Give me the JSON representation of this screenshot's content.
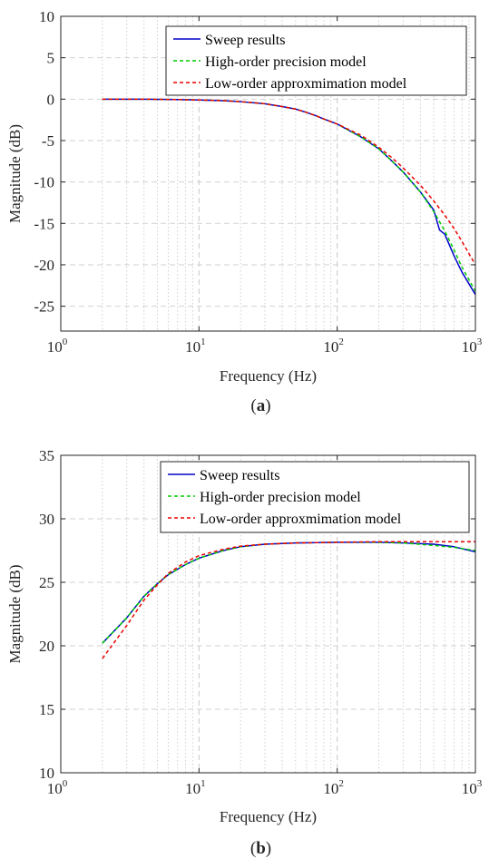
{
  "chart_data": [
    {
      "type": "line",
      "id": "a",
      "caption": "a",
      "xlabel": "Frequency (Hz)",
      "ylabel": "Magnitude (dB)",
      "xscale": "log",
      "xlim": [
        1,
        1000
      ],
      "ylim": [
        -28,
        10
      ],
      "xticks": [
        {
          "base": "10",
          "exp": "0"
        },
        {
          "base": "10",
          "exp": "1"
        },
        {
          "base": "10",
          "exp": "2"
        },
        {
          "base": "10",
          "exp": "3"
        }
      ],
      "yticks": [
        10,
        5,
        0,
        -5,
        -10,
        -15,
        -20,
        -25
      ],
      "grid": true,
      "legend_position": "top-right",
      "series": [
        {
          "name": "Sweep results",
          "color": "#0000cc",
          "style": "solid",
          "x": [
            2,
            4,
            7,
            10,
            15,
            20,
            30,
            40,
            50,
            60,
            70,
            80,
            100,
            150,
            200,
            250,
            300,
            400,
            500,
            550,
            600,
            700,
            800,
            1000
          ],
          "y": [
            0,
            0,
            -0.05,
            -0.1,
            -0.18,
            -0.3,
            -0.55,
            -0.9,
            -1.2,
            -1.6,
            -2.0,
            -2.4,
            -3.0,
            -4.6,
            -6.0,
            -7.5,
            -8.8,
            -11.2,
            -13.4,
            -15.8,
            -16.3,
            -18.9,
            -20.9,
            -23.6
          ]
        },
        {
          "name": "High-order precision model",
          "color": "#00cc00",
          "style": "dashed",
          "x": [
            2,
            4,
            7,
            10,
            15,
            20,
            30,
            40,
            50,
            60,
            70,
            80,
            100,
            150,
            200,
            250,
            300,
            400,
            500,
            600,
            700,
            800,
            1000
          ],
          "y": [
            0,
            0,
            -0.05,
            -0.1,
            -0.18,
            -0.3,
            -0.55,
            -0.9,
            -1.2,
            -1.6,
            -2.0,
            -2.4,
            -3.0,
            -4.6,
            -6.0,
            -7.5,
            -8.8,
            -11.2,
            -13.6,
            -15.9,
            -18.2,
            -20.3,
            -23.2
          ]
        },
        {
          "name": "Low-order approxmimation model",
          "color": "#ee0000",
          "style": "dashed",
          "x": [
            2,
            4,
            7,
            10,
            15,
            20,
            30,
            40,
            50,
            60,
            70,
            80,
            100,
            150,
            200,
            250,
            300,
            400,
            500,
            600,
            700,
            800,
            1000
          ],
          "y": [
            0,
            0,
            -0.05,
            -0.1,
            -0.18,
            -0.3,
            -0.55,
            -0.9,
            -1.2,
            -1.6,
            -2.0,
            -2.4,
            -3.0,
            -4.4,
            -5.8,
            -7.1,
            -8.3,
            -10.4,
            -12.3,
            -14.0,
            -15.6,
            -17.2,
            -20.0
          ]
        }
      ]
    },
    {
      "type": "line",
      "id": "b",
      "caption": "b",
      "xlabel": "Frequency (Hz)",
      "ylabel": "Magnitude (dB)",
      "xscale": "log",
      "xlim": [
        1,
        1000
      ],
      "ylim": [
        10,
        35
      ],
      "xticks": [
        {
          "base": "10",
          "exp": "0"
        },
        {
          "base": "10",
          "exp": "1"
        },
        {
          "base": "10",
          "exp": "2"
        },
        {
          "base": "10",
          "exp": "3"
        }
      ],
      "yticks": [
        35,
        30,
        25,
        20,
        15,
        10
      ],
      "grid": true,
      "legend_position": "top-right",
      "series": [
        {
          "name": "Sweep results",
          "color": "#0000cc",
          "style": "solid",
          "x": [
            2,
            3,
            4,
            5,
            6,
            8,
            10,
            15,
            20,
            30,
            50,
            100,
            200,
            300,
            500,
            700,
            1000
          ],
          "y": [
            20.2,
            22.2,
            23.9,
            24.9,
            25.6,
            26.4,
            26.9,
            27.5,
            27.8,
            28.0,
            28.1,
            28.15,
            28.15,
            28.1,
            28.0,
            27.8,
            27.4
          ]
        },
        {
          "name": "High-order precision model",
          "color": "#00cc00",
          "style": "dashed",
          "x": [
            2,
            3,
            4,
            5,
            6,
            8,
            10,
            15,
            20,
            30,
            50,
            100,
            200,
            300,
            500,
            700,
            1000
          ],
          "y": [
            20.2,
            22.2,
            23.9,
            24.9,
            25.6,
            26.4,
            26.9,
            27.5,
            27.8,
            28.0,
            28.1,
            28.15,
            28.15,
            28.1,
            27.9,
            27.75,
            27.5
          ]
        },
        {
          "name": "Low-order approxmimation model",
          "color": "#ee0000",
          "style": "dashed",
          "x": [
            2,
            3,
            4,
            5,
            6,
            8,
            10,
            15,
            20,
            30,
            50,
            100,
            200,
            300,
            500,
            700,
            1000
          ],
          "y": [
            19.0,
            21.6,
            23.6,
            24.8,
            25.7,
            26.6,
            27.1,
            27.6,
            27.85,
            28.0,
            28.1,
            28.15,
            28.2,
            28.2,
            28.2,
            28.2,
            28.2
          ]
        }
      ]
    }
  ]
}
